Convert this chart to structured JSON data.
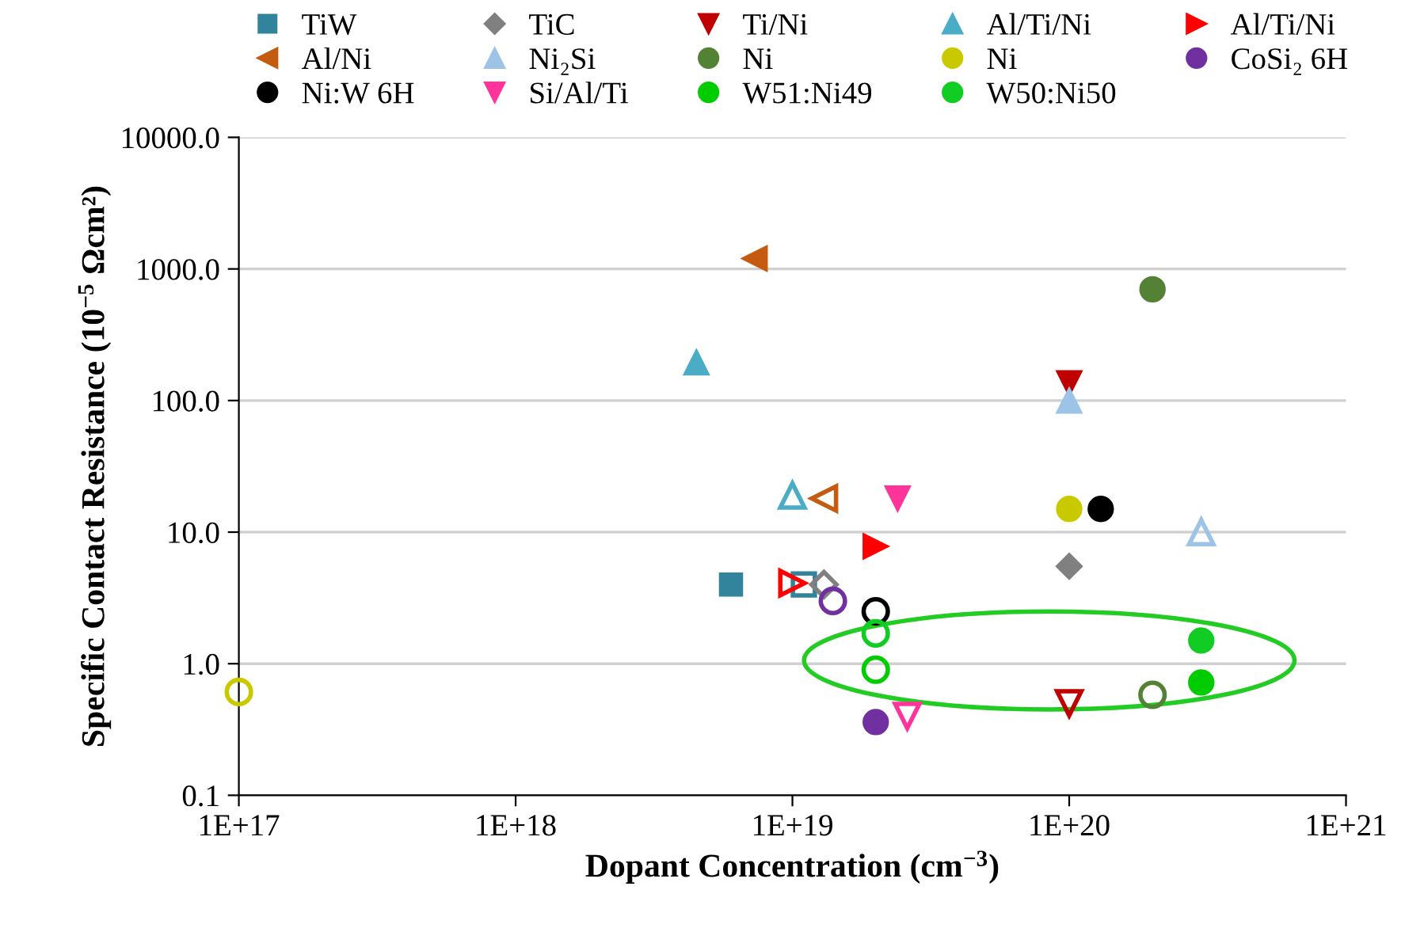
{
  "chart_data": {
    "type": "scatter",
    "xlabel": "Dopant Concentration (cm$^{−3}$)",
    "ylabel": "Specific Contact Resistance (10$^{−5}$ Ωcm²)",
    "log": "xy",
    "grid": "y",
    "legend": "top",
    "xlim": [
      1e+17,
      1e+21
    ],
    "ylim": [
      0.1,
      10000
    ],
    "xticks": [
      {
        "value": 1e+17,
        "label": "1E+17"
      },
      {
        "value": 1e+18,
        "label": "1E+18"
      },
      {
        "value": 1e+19,
        "label": "1E+19"
      },
      {
        "value": 1e+20,
        "label": "1E+20"
      },
      {
        "value": 1e+21,
        "label": "1E+21"
      }
    ],
    "yticks": [
      {
        "value": 0.1,
        "label": "0.1"
      },
      {
        "value": 1,
        "label": "1.0"
      },
      {
        "value": 10,
        "label": "10.0"
      },
      {
        "value": 100,
        "label": "100.0"
      },
      {
        "value": 1000,
        "label": "1000.0"
      },
      {
        "value": 10000,
        "label": "10000.0"
      }
    ],
    "series": [
      {
        "name": "TiW",
        "color": "#31849b",
        "marker": "square",
        "x": [
          6e+18
        ],
        "values": [
          4
        ]
      },
      {
        "name": "TiC",
        "color": "#808080",
        "marker": "diamond",
        "x": [
          1e+20
        ],
        "values": [
          5.5
        ]
      },
      {
        "name": "Ti/Ni",
        "color": "#c00000",
        "marker": "triangle-down",
        "x": [
          1e+20
        ],
        "values": [
          135
        ]
      },
      {
        "name": "Al/Ti/Ni",
        "color": "#4bacc6",
        "marker": "triangle",
        "x": [
          4.5e+18
        ],
        "values": [
          195
        ]
      },
      {
        "name": "Al/Ti/Ni",
        "color": "#ff0000",
        "marker": "triangle-right",
        "x": [
          2e+19
        ],
        "values": [
          7.8
        ]
      },
      {
        "name": "Al/Ni",
        "color": "#c55a11",
        "marker": "triangle-left",
        "x": [
          7.3e+18
        ],
        "values": [
          1200
        ]
      },
      {
        "name": "Ni₂Si",
        "color": "#9dc3e6",
        "marker": "triangle",
        "x": [
          1e+20
        ],
        "values": [
          100
        ]
      },
      {
        "name": "Ni",
        "color": "#548235",
        "marker": "circle",
        "x": [
          2e+20
        ],
        "values": [
          700
        ]
      },
      {
        "name": "Ni",
        "color": "#c9c900",
        "marker": "circle",
        "x": [
          1e+20
        ],
        "values": [
          15
        ]
      },
      {
        "name": "CoSi₂ 6H",
        "color": "#7030a0",
        "marker": "circle",
        "x": [
          2e+19
        ],
        "values": [
          0.36
        ]
      },
      {
        "name": "Ni:W 6H",
        "color": "#000000",
        "marker": "circle",
        "x": [
          1.3e+20
        ],
        "values": [
          15
        ]
      },
      {
        "name": "Si/Al/Ti",
        "color": "#ff3399",
        "marker": "triangle-down",
        "x": [
          2.4e+19
        ],
        "values": [
          18
        ]
      },
      {
        "name": "W51:Ni49",
        "color": "#00cc00",
        "marker": "circle",
        "x": [
          3e+20
        ],
        "values": [
          0.72
        ]
      },
      {
        "name": "W50:Ni50",
        "color": "#11cc22",
        "marker": "circle",
        "x": [
          3e+20
        ],
        "values": [
          1.5
        ]
      },
      {
        "color": "#31849b",
        "marker": "square-open",
        "x": [
          1.1e+19
        ],
        "values": [
          4
        ]
      },
      {
        "color": "#808080",
        "marker": "diamond-open",
        "x": [
          1.3e+19
        ],
        "values": [
          4
        ]
      },
      {
        "color": "#c00000",
        "marker": "triangle-down-open",
        "x": [
          1e+20
        ],
        "values": [
          0.5
        ]
      },
      {
        "color": "#4bacc6",
        "marker": "triangle-open",
        "x": [
          1e+19
        ],
        "values": [
          19
        ]
      },
      {
        "color": "#ff0000",
        "marker": "triangle-right-open",
        "x": [
          1e+19
        ],
        "values": [
          4.1
        ]
      },
      {
        "color": "#c55a11",
        "marker": "triangle-left-open",
        "x": [
          1.3e+19
        ],
        "values": [
          18
        ]
      },
      {
        "color": "#9dc3e6",
        "marker": "triangle-open",
        "x": [
          3e+20
        ],
        "values": [
          10
        ]
      },
      {
        "color": "#548235",
        "marker": "circle-open",
        "x": [
          2e+20
        ],
        "values": [
          0.58
        ]
      },
      {
        "color": "#c9c900",
        "marker": "circle-open",
        "x": [
          1e+17
        ],
        "values": [
          0.61
        ]
      },
      {
        "color": "#7030a0",
        "marker": "circle-open",
        "x": [
          1.4e+19
        ],
        "values": [
          3
        ]
      },
      {
        "color": "#000000",
        "marker": "circle-open",
        "x": [
          2e+19
        ],
        "values": [
          2.5
        ]
      },
      {
        "color": "#ff3399",
        "marker": "triangle-down-open",
        "x": [
          2.6e+19
        ],
        "values": [
          0.4
        ]
      },
      {
        "color": "#00cc00",
        "marker": "circle-open",
        "x": [
          2e+19
        ],
        "values": [
          0.9
        ]
      },
      {
        "color": "#11cc22",
        "marker": "circle-open",
        "x": [
          2e+19
        ],
        "values": [
          1.7
        ]
      }
    ]
  }
}
